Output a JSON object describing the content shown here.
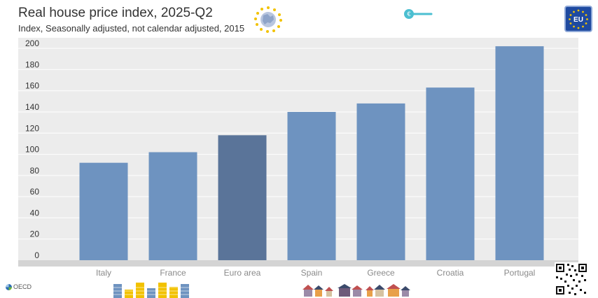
{
  "header": {
    "title": "Real house price index, 2025-Q2",
    "subtitle": "Index, Seasonally adjusted, not calendar adjusted, 2015"
  },
  "footer": {
    "oecd_label": "OECD"
  },
  "colors": {
    "bar": "#6e93c0",
    "bar_highlight": "#5a7499",
    "plot_bg": "#ececec",
    "plot_bg_alt": "#e4e4e4",
    "grid": "#ffffff",
    "tick_label": "#333333",
    "category_label": "#8a8a8a",
    "accent": "#4bbfd1"
  },
  "chart_data": {
    "type": "bar",
    "categories": [
      "Italy",
      "France",
      "Euro area",
      "Spain",
      "Greece",
      "Croatia",
      "Portugal"
    ],
    "values": [
      92,
      102,
      118,
      140,
      148,
      163,
      202
    ],
    "highlight": "Euro area",
    "ylim": [
      0,
      210
    ],
    "yticks": [
      0,
      20,
      40,
      60,
      80,
      100,
      120,
      140,
      160,
      180,
      200
    ],
    "grid": true,
    "legend": "none"
  }
}
